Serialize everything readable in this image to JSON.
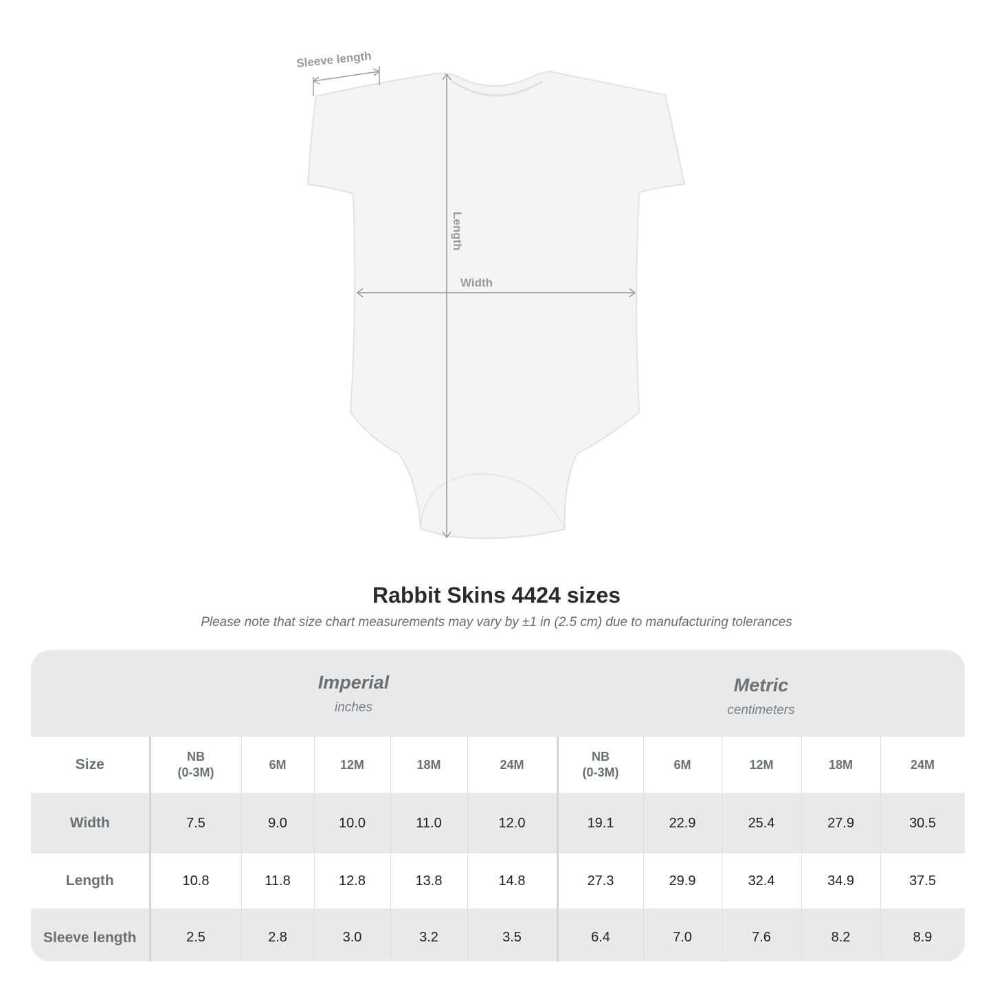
{
  "illustration": {
    "labels": {
      "sleeve": "Sleeve length",
      "length": "Length",
      "width": "Width"
    },
    "colors": {
      "garment": "#f4f4f4",
      "measure": "#9a9a9a"
    }
  },
  "title": "Rabbit Skins 4424 sizes",
  "subtitle": "Please note that size chart measurements may vary by ±1 in (2.5 cm) due to manufacturing tolerances",
  "table": {
    "imperial": {
      "title": "Imperial",
      "unit": "inches"
    },
    "metric": {
      "title": "Metric",
      "unit": "centimeters"
    },
    "size_label": "Size",
    "sizes": [
      {
        "line1": "NB",
        "line2": "(0-3M)"
      },
      {
        "line1": "6M",
        "line2": ""
      },
      {
        "line1": "12M",
        "line2": ""
      },
      {
        "line1": "18M",
        "line2": ""
      },
      {
        "line1": "24M",
        "line2": ""
      }
    ],
    "rows": [
      {
        "label": "Width",
        "imperial": [
          "7.5",
          "9.0",
          "10.0",
          "11.0",
          "12.0"
        ],
        "metric": [
          "19.1",
          "22.9",
          "25.4",
          "27.9",
          "30.5"
        ]
      },
      {
        "label": "Length",
        "imperial": [
          "10.8",
          "11.8",
          "12.8",
          "13.8",
          "14.8"
        ],
        "metric": [
          "27.3",
          "29.9",
          "32.4",
          "34.9",
          "37.5"
        ]
      },
      {
        "label": "Sleeve length",
        "imperial": [
          "2.5",
          "2.8",
          "3.0",
          "3.2",
          "3.5"
        ],
        "metric": [
          "6.4",
          "7.0",
          "7.6",
          "8.2",
          "8.9"
        ]
      }
    ],
    "colors": {
      "header_bg": "#e9e9e9",
      "label_text": "#6a7074"
    }
  }
}
